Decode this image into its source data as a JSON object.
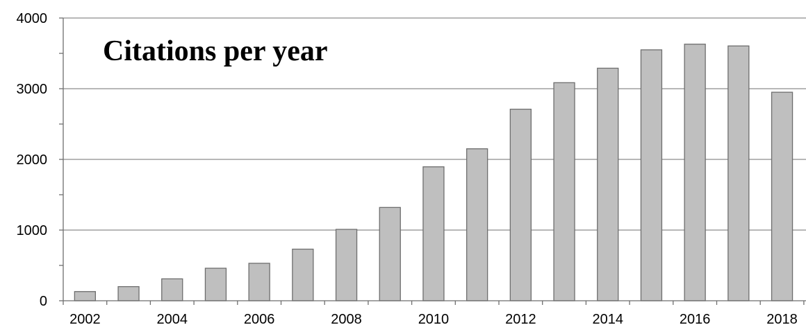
{
  "chart_data": {
    "type": "bar",
    "title": "Citations per year",
    "xlabel": "",
    "ylabel": "",
    "categories": [
      "2002",
      "2003",
      "2004",
      "2005",
      "2006",
      "2007",
      "2008",
      "2009",
      "2010",
      "2011",
      "2012",
      "2013",
      "2014",
      "2015",
      "2016",
      "2017",
      "2018"
    ],
    "values": [
      130,
      200,
      310,
      460,
      530,
      730,
      1010,
      1320,
      1895,
      2150,
      2710,
      3085,
      3290,
      3550,
      3630,
      3605,
      2950
    ],
    "x_tick_labels": [
      "2002",
      "2004",
      "2006",
      "2008",
      "2010",
      "2012",
      "2014",
      "2016",
      "2018"
    ],
    "y_tick_labels": [
      "0",
      "1000",
      "2000",
      "3000",
      "4000"
    ],
    "ylim": [
      0,
      4000
    ],
    "y_major_step": 1000,
    "y_minor_step": 500,
    "grid": "horizontal major gridlines",
    "legend": "none",
    "colors": {
      "bar_fill": "#bfbfbf",
      "bar_stroke": "#6e6e6e",
      "grid": "#8c8c8c",
      "axis": "#6e6e6e"
    }
  }
}
